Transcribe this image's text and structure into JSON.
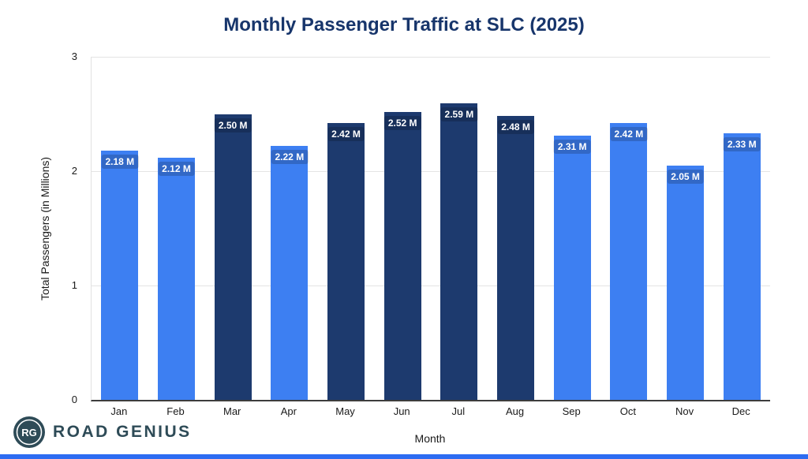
{
  "title": "Monthly Passenger Traffic at SLC (2025)",
  "colors": {
    "bar_light": "#3d7ff2",
    "bar_dark": "#1d3a6e",
    "title": "#17356b",
    "grid": "#e4e4e4",
    "axis": "#3d3d3d",
    "footer_bar": "#2d6cf1",
    "logo": "#2e4b57"
  },
  "chart_data": {
    "type": "bar",
    "title": "Monthly Passenger Traffic at SLC (2025)",
    "xlabel": "Month",
    "ylabel": "Total Passengers (in Millions)",
    "ylim": [
      0,
      3
    ],
    "yticks": [
      0,
      1,
      2,
      3
    ],
    "grid": true,
    "legend": false,
    "categories": [
      "Jan",
      "Feb",
      "Mar",
      "Apr",
      "May",
      "Jun",
      "Jul",
      "Aug",
      "Sep",
      "Oct",
      "Nov",
      "Dec"
    ],
    "values": [
      2.18,
      2.12,
      2.5,
      2.22,
      2.42,
      2.52,
      2.59,
      2.48,
      2.31,
      2.42,
      2.05,
      2.33
    ],
    "labels": [
      "2.18 M",
      "2.12 M",
      "2.50 M",
      "2.22 M",
      "2.42 M",
      "2.52 M",
      "2.59 M",
      "2.48 M",
      "2.31 M",
      "2.42 M",
      "2.05 M",
      "2.33 M"
    ],
    "bar_styles": [
      "light",
      "light",
      "dark",
      "light",
      "dark",
      "dark",
      "dark",
      "dark",
      "light",
      "light",
      "light",
      "light"
    ]
  },
  "footer": {
    "logo_initials": "RG",
    "brand": "ROAD GENIUS"
  }
}
